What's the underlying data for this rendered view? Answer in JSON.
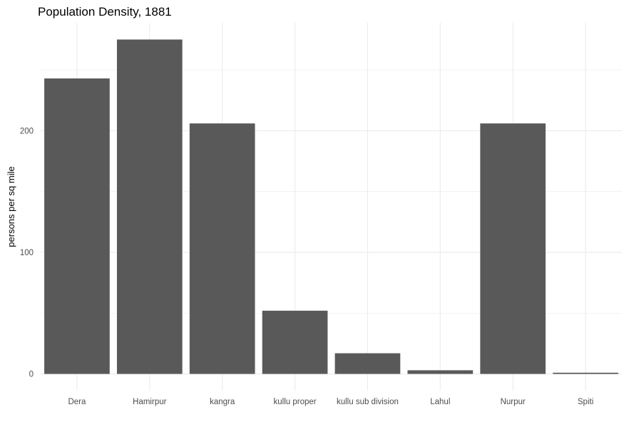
{
  "chart_data": {
    "type": "bar",
    "title": "Population Density, 1881",
    "xlabel": "",
    "ylabel": "persons per sq mile",
    "categories": [
      "Dera",
      "Hamirpur",
      "kangra",
      "kullu proper",
      "kullu sub division",
      "Lahul",
      "Nurpur",
      "Spiti"
    ],
    "values": [
      243,
      275,
      206,
      52,
      17,
      3,
      206,
      1
    ],
    "ylim": [
      -13.75,
      288.75
    ],
    "yticks": [
      0,
      100,
      200
    ],
    "yminor": [
      50,
      150,
      250
    ],
    "grid": true,
    "bar_color": "#595959",
    "grid_color": "#ebebeb"
  }
}
